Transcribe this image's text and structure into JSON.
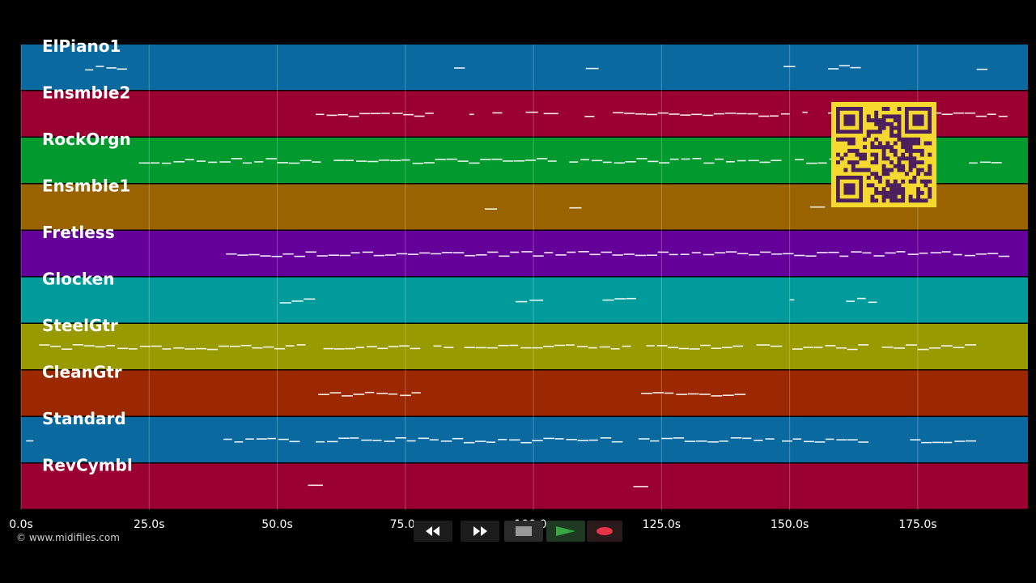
{
  "credit": "© www.midifiles.com",
  "chart_data": {
    "type": "piano-roll",
    "xlim": [
      0,
      196.5
    ],
    "x_ticks": [
      {
        "value": 0,
        "label": "0.0s"
      },
      {
        "value": 25,
        "label": "25.0s"
      },
      {
        "value": 50,
        "label": "50.0s"
      },
      {
        "value": 75,
        "label": "75.0s"
      },
      {
        "value": 100,
        "label": "100.0s"
      },
      {
        "value": 125,
        "label": "125.0s"
      },
      {
        "value": 150,
        "label": "150.0s"
      },
      {
        "value": 175,
        "label": "175.0s"
      }
    ],
    "grid": true,
    "tracks": [
      {
        "name": "ElPiano1",
        "color": "#0a6aa0",
        "notes": [
          [
            12.5,
            20.8
          ],
          [
            84.5,
            86.7
          ],
          [
            110.2,
            112.8
          ],
          [
            148.8,
            151.2
          ],
          [
            157.5,
            164.0
          ],
          [
            186.5,
            188.7
          ]
        ]
      },
      {
        "name": "Ensmble2",
        "color": "#9b0033",
        "notes": [
          [
            57.5,
            81.0
          ],
          [
            87.5,
            88.5
          ],
          [
            92.0,
            94.0
          ],
          [
            98.5,
            101.0
          ],
          [
            102.0,
            105.0
          ],
          [
            110.0,
            112.0
          ],
          [
            115.5,
            150.5
          ],
          [
            152.5,
            154.0
          ],
          [
            157.5,
            193.0
          ]
        ]
      },
      {
        "name": "RockOrgn",
        "color": "#02992e",
        "notes": [
          [
            23.0,
            59.0
          ],
          [
            61.0,
            105.0
          ],
          [
            107.0,
            148.5
          ],
          [
            151.0,
            178.0
          ],
          [
            185.0,
            191.5
          ]
        ]
      },
      {
        "name": "Ensmble1",
        "color": "#996300",
        "notes": [
          [
            90.5,
            93.0
          ],
          [
            107.0,
            109.5
          ],
          [
            154.0,
            157.0
          ]
        ]
      },
      {
        "name": "Fretless",
        "color": "#640099",
        "notes": [
          [
            40.0,
            193.0
          ]
        ]
      },
      {
        "name": "Glocken",
        "color": "#019b9b",
        "notes": [
          [
            50.5,
            57.5
          ],
          [
            96.5,
            102.0
          ],
          [
            113.5,
            120.5
          ],
          [
            150.0,
            151.0
          ],
          [
            161.0,
            167.5
          ]
        ]
      },
      {
        "name": "SteelGtr",
        "color": "#999900",
        "notes": [
          [
            3.5,
            56.0
          ],
          [
            59.0,
            78.0
          ],
          [
            80.5,
            84.5
          ],
          [
            86.5,
            119.5
          ],
          [
            122.0,
            141.0
          ],
          [
            143.5,
            149.0
          ],
          [
            150.5,
            165.5
          ],
          [
            168.0,
            186.5
          ]
        ]
      },
      {
        "name": "CleanGtr",
        "color": "#9b2800",
        "notes": [
          [
            58.0,
            78.5
          ],
          [
            121.0,
            141.5
          ]
        ]
      },
      {
        "name": "Standard",
        "color": "#0a6aa0",
        "notes": [
          [
            1.0,
            2.5
          ],
          [
            39.5,
            54.5
          ],
          [
            57.5,
            117.5
          ],
          [
            120.5,
            147.5
          ],
          [
            148.5,
            165.5
          ],
          [
            173.5,
            186.5
          ]
        ]
      },
      {
        "name": "RevCymbl",
        "color": "#9b0033",
        "notes": [
          [
            56.0,
            59.0
          ],
          [
            119.5,
            122.5
          ]
        ]
      }
    ]
  },
  "transport": {
    "rewind_icon": "rewind-icon",
    "forward_icon": "fast-forward-icon",
    "stop_icon": "stop-icon",
    "play_icon": "play-icon",
    "record_icon": "record-icon",
    "play_color": "#35a845",
    "record_color": "#e8344a"
  },
  "qr_icon": "qr-code-icon"
}
